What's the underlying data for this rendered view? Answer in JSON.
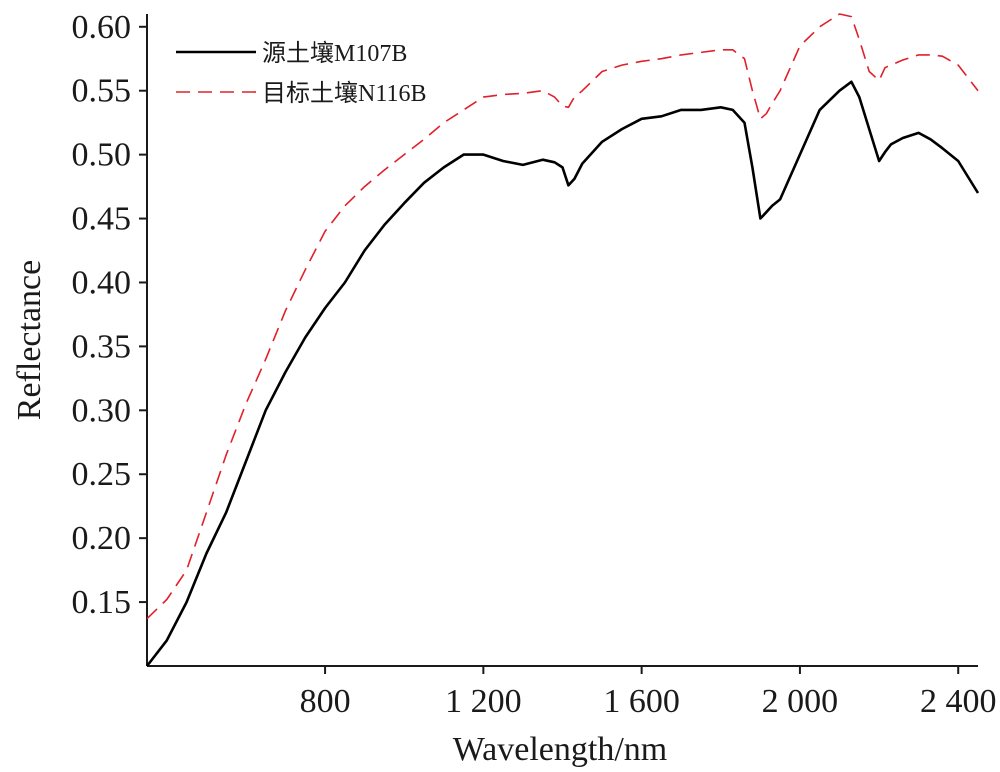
{
  "chart_data": {
    "type": "line",
    "xlabel": "Wavelength/nm",
    "ylabel": "Reflectance",
    "xlim": [
      350,
      2450
    ],
    "ylim": [
      0.1,
      0.61
    ],
    "xticks": [
      800,
      1200,
      1600,
      2000,
      2400
    ],
    "xtick_labels": [
      "800",
      "1 200",
      "1 600",
      "2 000",
      "2 400"
    ],
    "yticks": [
      0.15,
      0.2,
      0.25,
      0.3,
      0.35,
      0.4,
      0.45,
      0.5,
      0.55,
      0.6
    ],
    "ytick_labels": [
      "0.15",
      "0.20",
      "0.25",
      "0.30",
      "0.35",
      "0.40",
      "0.45",
      "0.50",
      "0.55",
      "0.60"
    ],
    "grid": false,
    "legend_position": "top-left",
    "series": [
      {
        "name": "源土壤M107B",
        "color": "#000000",
        "style": "solid",
        "x": [
          350,
          400,
          450,
          500,
          550,
          600,
          650,
          700,
          750,
          800,
          850,
          900,
          950,
          1000,
          1050,
          1100,
          1150,
          1200,
          1250,
          1300,
          1350,
          1380,
          1400,
          1415,
          1430,
          1450,
          1500,
          1550,
          1600,
          1650,
          1700,
          1750,
          1800,
          1830,
          1860,
          1880,
          1900,
          1915,
          1930,
          1950,
          2000,
          2050,
          2100,
          2130,
          2150,
          2175,
          2200,
          2215,
          2230,
          2260,
          2300,
          2330,
          2360,
          2400,
          2450
        ],
        "y": [
          0.1,
          0.12,
          0.15,
          0.188,
          0.22,
          0.26,
          0.3,
          0.33,
          0.357,
          0.38,
          0.4,
          0.425,
          0.445,
          0.462,
          0.478,
          0.49,
          0.5,
          0.5,
          0.495,
          0.492,
          0.496,
          0.494,
          0.49,
          0.476,
          0.481,
          0.493,
          0.51,
          0.52,
          0.528,
          0.53,
          0.535,
          0.535,
          0.537,
          0.535,
          0.525,
          0.49,
          0.45,
          0.455,
          0.46,
          0.465,
          0.5,
          0.535,
          0.55,
          0.557,
          0.545,
          0.52,
          0.495,
          0.502,
          0.508,
          0.513,
          0.517,
          0.512,
          0.505,
          0.495,
          0.47
        ]
      },
      {
        "name": "目标土壤N116B",
        "color": "#e0202a",
        "style": "dashed",
        "x": [
          350,
          400,
          450,
          500,
          550,
          600,
          650,
          700,
          750,
          800,
          850,
          900,
          950,
          1000,
          1050,
          1100,
          1150,
          1200,
          1250,
          1300,
          1350,
          1380,
          1400,
          1415,
          1430,
          1450,
          1500,
          1550,
          1600,
          1650,
          1700,
          1750,
          1800,
          1830,
          1860,
          1880,
          1900,
          1915,
          1930,
          1950,
          2000,
          2050,
          2100,
          2130,
          2150,
          2175,
          2200,
          2215,
          2230,
          2260,
          2300,
          2330,
          2360,
          2400,
          2450
        ],
        "y": [
          0.137,
          0.152,
          0.175,
          0.22,
          0.265,
          0.305,
          0.34,
          0.378,
          0.41,
          0.44,
          0.46,
          0.475,
          0.488,
          0.5,
          0.512,
          0.525,
          0.535,
          0.545,
          0.547,
          0.548,
          0.55,
          0.545,
          0.538,
          0.537,
          0.545,
          0.55,
          0.565,
          0.57,
          0.573,
          0.575,
          0.578,
          0.58,
          0.582,
          0.582,
          0.575,
          0.55,
          0.528,
          0.532,
          0.54,
          0.55,
          0.585,
          0.6,
          0.61,
          0.608,
          0.59,
          0.565,
          0.558,
          0.568,
          0.57,
          0.574,
          0.578,
          0.578,
          0.577,
          0.57,
          0.55
        ]
      }
    ]
  }
}
